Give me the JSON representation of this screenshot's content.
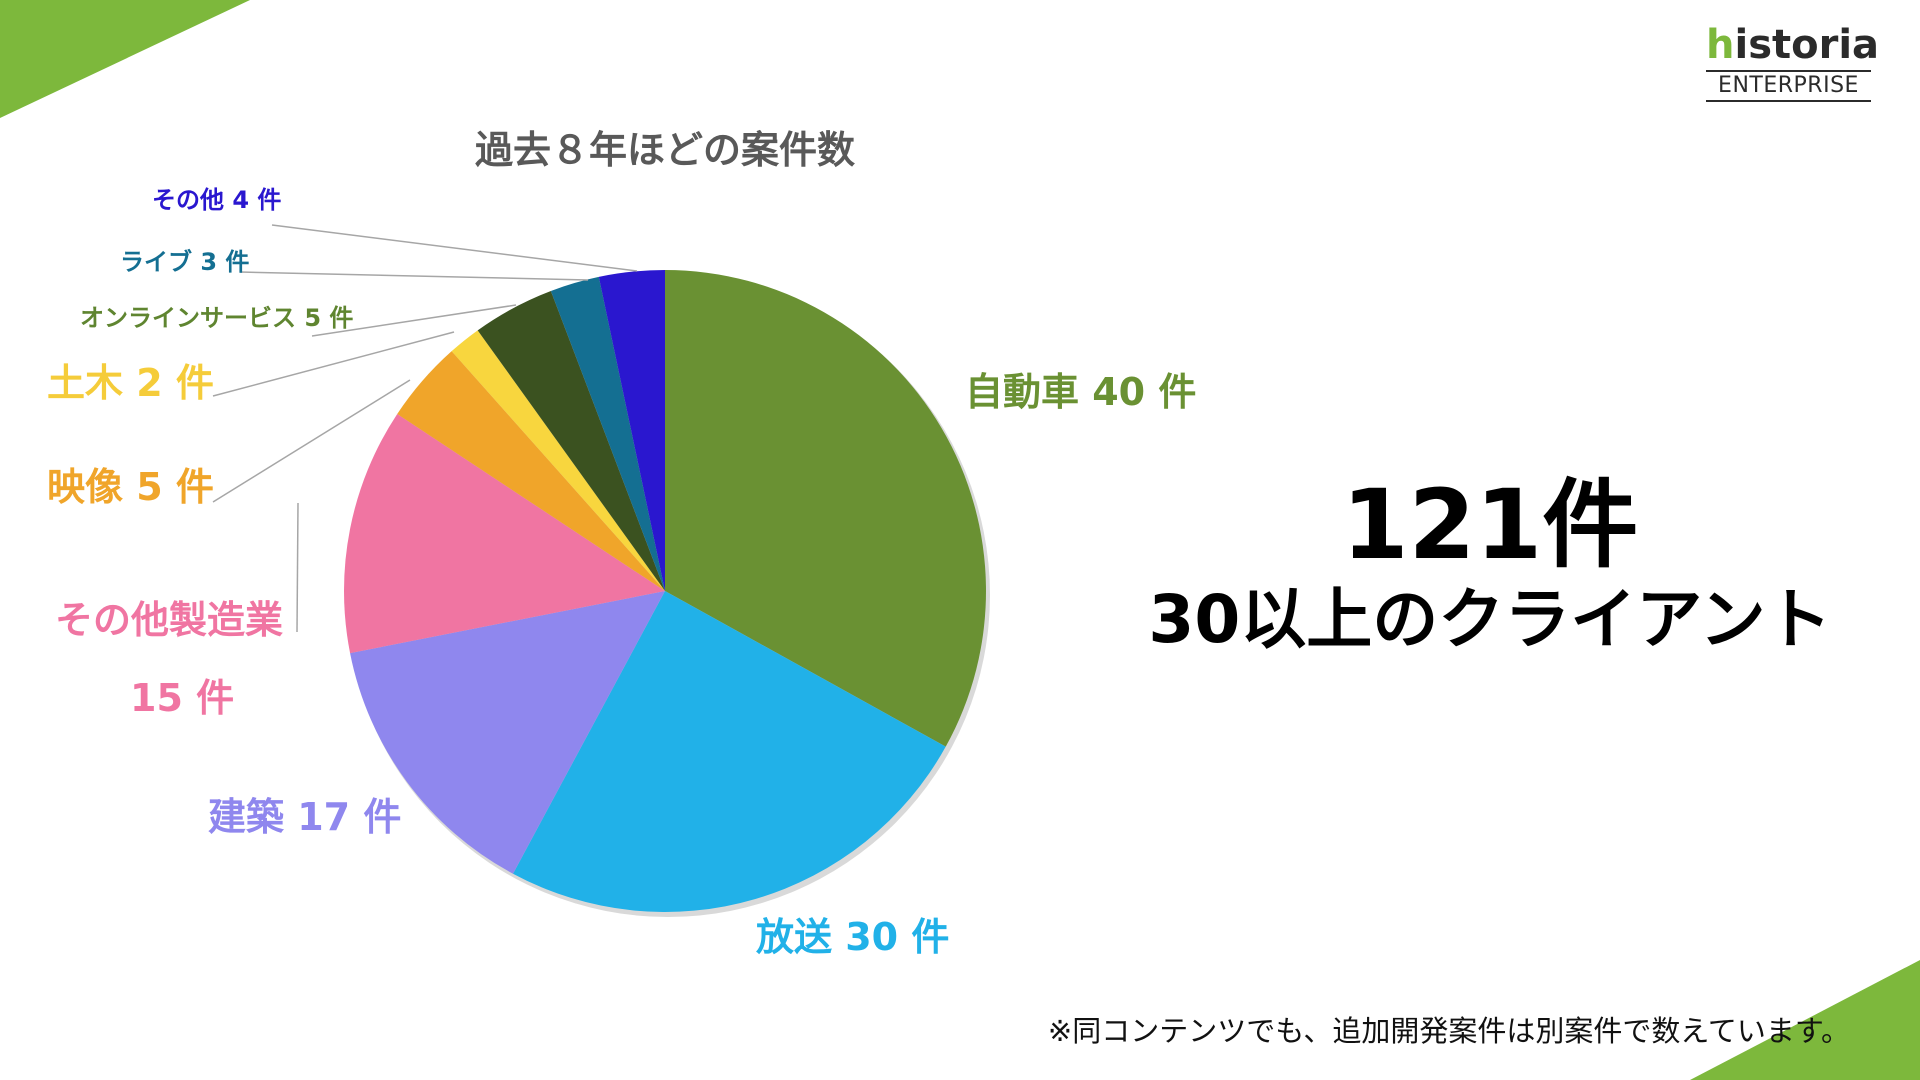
{
  "chart_data": {
    "type": "pie",
    "title": "過去８年ほどの案件数",
    "start_angle_deg": 0,
    "direction": "clockwise",
    "slices": [
      {
        "category": "自動車",
        "value": 40,
        "label": "自動車 40 件",
        "color": "#6a9133",
        "label_color": "#6a9133"
      },
      {
        "category": "放送",
        "value": 30,
        "label": "放送 30 件",
        "color": "#21b1e8",
        "label_color": "#21b1e8"
      },
      {
        "category": "建築",
        "value": 17,
        "label": "建築 17 件",
        "color": "#8f87ee",
        "label_color": "#8f87ee"
      },
      {
        "category": "その他製造業",
        "value": 15,
        "label": "その他製造業",
        "label_line2": "15 件",
        "color": "#f075a2",
        "label_color": "#f075a2"
      },
      {
        "category": "映像",
        "value": 5,
        "label": "映像 5 件",
        "color": "#f0a52a",
        "label_color": "#f0a52a"
      },
      {
        "category": "土木",
        "value": 2,
        "label": "土木 2 件",
        "color": "#f8d63e",
        "label_color": "#f5cc3a"
      },
      {
        "category": "オンラインサービス",
        "value": 5,
        "label": "オンラインサービス 5 件",
        "color": "#3b5220",
        "label_color": "#5f8530"
      },
      {
        "category": "ライブ",
        "value": 3,
        "label": "ライブ 3 件",
        "color": "#146f92",
        "label_color": "#146f92"
      },
      {
        "category": "その他",
        "value": 4,
        "label": "その他 4 件",
        "color": "#2a17cf",
        "label_color": "#2a17cf"
      }
    ]
  },
  "summary": {
    "total": "121件",
    "clients": "30以上のクライアント"
  },
  "footnote": "※同コンテンツでも、追加開発案件は別案件で数えています。",
  "brand": {
    "logo_h": "h",
    "logo_rest": "istoria",
    "logo_sub": "ENTERPRISE",
    "accent": "#7db83c"
  }
}
